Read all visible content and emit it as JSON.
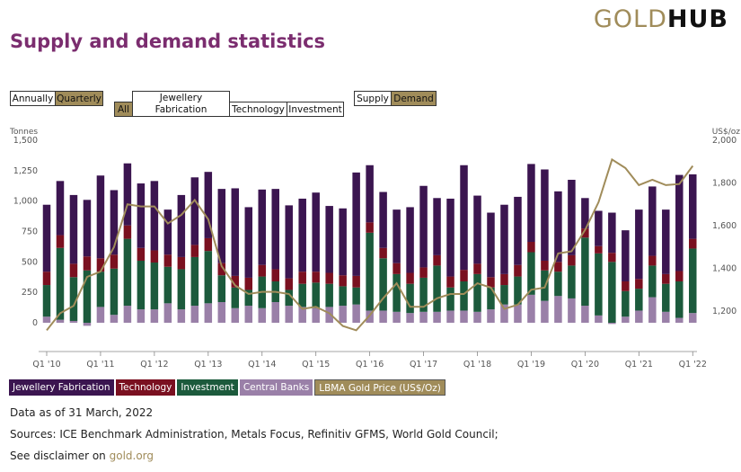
{
  "logo": {
    "part1": "GOLD",
    "part2": "HUB"
  },
  "title": "Supply and demand statistics",
  "controls": {
    "annually": "Annually",
    "quarterly": "Quarterly",
    "all": "All",
    "jewellery": "Jewellery Fabrication",
    "technology": "Technology",
    "investment": "Investment",
    "supply": "Supply",
    "demand": "Demand"
  },
  "legend": {
    "jewellery": "Jewellery Fabrication",
    "technology": "Technology",
    "investment": "Investment",
    "central_banks": "Central Banks",
    "gold_price": "LBMA Gold Price (US$/Oz)"
  },
  "colors": {
    "jewellery": "#3b1550",
    "technology": "#7a1020",
    "investment": "#1c5a3c",
    "central_banks": "#9a80a8",
    "gold_price": "#a08c5a"
  },
  "footer": {
    "data_as_of": "Data as of 31 March, 2022",
    "sources": "Sources: ICE Benchmark Administration, Metals Focus, Refinitiv GFMS, World Gold Council;",
    "disclaimer_prefix": "See disclaimer on ",
    "disclaimer_link": "gold.org"
  },
  "chart_data": {
    "type": "bar",
    "stacked": true,
    "ylabel_left": "Tonnes",
    "ylabel_right": "US$/oz",
    "ylim_left": [
      -70,
      1500
    ],
    "ylim_right": [
      1050,
      2000
    ],
    "yticks_left": [
      "0",
      "250",
      "500",
      "750",
      "1,000",
      "1,250",
      "1,500"
    ],
    "yticks_right": [
      "1,200",
      "1,400",
      "1,600",
      "1,800",
      "2,000"
    ],
    "xtick_labels": [
      "Q1 '10",
      "Q1 '11",
      "Q1 '12",
      "Q1 '13",
      "Q1 '14",
      "Q1 '15",
      "Q1 '16",
      "Q1 '17",
      "Q1 '18",
      "Q1 '19",
      "Q1 '20",
      "Q1 '21",
      "Q1 '22"
    ],
    "xtick_index": [
      0,
      4,
      8,
      12,
      16,
      20,
      24,
      28,
      32,
      36,
      40,
      44,
      48
    ],
    "categories": [
      "Q1 '10",
      "Q2 '10",
      "Q3 '10",
      "Q4 '10",
      "Q1 '11",
      "Q2 '11",
      "Q3 '11",
      "Q4 '11",
      "Q1 '12",
      "Q2 '12",
      "Q3 '12",
      "Q4 '12",
      "Q1 '13",
      "Q2 '13",
      "Q3 '13",
      "Q4 '13",
      "Q1 '14",
      "Q2 '14",
      "Q3 '14",
      "Q4 '14",
      "Q1 '15",
      "Q2 '15",
      "Q3 '15",
      "Q4 '15",
      "Q1 '16",
      "Q2 '16",
      "Q3 '16",
      "Q4 '16",
      "Q1 '17",
      "Q2 '17",
      "Q3 '17",
      "Q4 '17",
      "Q1 '18",
      "Q2 '18",
      "Q3 '18",
      "Q4 '18",
      "Q1 '19",
      "Q2 '19",
      "Q3 '19",
      "Q4 '19",
      "Q1 '20",
      "Q2 '20",
      "Q3 '20",
      "Q4 '20",
      "Q1 '21",
      "Q2 '21",
      "Q3 '21",
      "Q4 '21",
      "Q1 '22"
    ],
    "series": [
      {
        "name": "Central Banks",
        "values": [
          50,
          25,
          15,
          -25,
          130,
          65,
          140,
          110,
          110,
          160,
          110,
          140,
          160,
          170,
          120,
          140,
          120,
          170,
          140,
          130,
          120,
          130,
          140,
          150,
          100,
          100,
          90,
          80,
          90,
          90,
          100,
          100,
          90,
          110,
          150,
          150,
          230,
          180,
          220,
          200,
          140,
          60,
          -10,
          50,
          100,
          210,
          90,
          40,
          80
        ]
      },
      {
        "name": "Investment",
        "values": [
          260,
          590,
          360,
          430,
          290,
          380,
          550,
          400,
          385,
          300,
          330,
          400,
          430,
          220,
          170,
          130,
          260,
          170,
          130,
          190,
          210,
          190,
          160,
          140,
          640,
          430,
          310,
          240,
          280,
          380,
          190,
          240,
          310,
          180,
          160,
          230,
          350,
          250,
          200,
          270,
          560,
          510,
          500,
          210,
          180,
          260,
          230,
          300,
          530
        ]
      },
      {
        "name": "Technology",
        "values": [
          110,
          105,
          110,
          115,
          110,
          115,
          110,
          105,
          100,
          100,
          100,
          100,
          105,
          100,
          95,
          100,
          95,
          100,
          95,
          100,
          90,
          90,
          90,
          95,
          85,
          85,
          90,
          90,
          85,
          85,
          90,
          95,
          85,
          85,
          90,
          95,
          85,
          80,
          80,
          85,
          75,
          60,
          75,
          80,
          80,
          80,
          80,
          85,
          80
        ]
      },
      {
        "name": "Jewellery Fabrication",
        "values": [
          550,
          445,
          565,
          465,
          680,
          530,
          510,
          530,
          570,
          370,
          510,
          555,
          545,
          610,
          720,
          580,
          620,
          660,
          600,
          600,
          650,
          550,
          550,
          850,
          470,
          460,
          440,
          540,
          670,
          470,
          640,
          860,
          560,
          530,
          570,
          560,
          640,
          750,
          580,
          620,
          250,
          290,
          330,
          420,
          570,
          570,
          530,
          790,
          530
        ]
      }
    ],
    "price": {
      "name": "LBMA Gold Price (US$/Oz)",
      "values": [
        1110,
        1190,
        1225,
        1360,
        1385,
        1500,
        1700,
        1690,
        1690,
        1610,
        1650,
        1720,
        1630,
        1410,
        1320,
        1280,
        1290,
        1290,
        1280,
        1210,
        1220,
        1190,
        1130,
        1110,
        1180,
        1260,
        1330,
        1220,
        1220,
        1260,
        1280,
        1280,
        1330,
        1310,
        1210,
        1230,
        1300,
        1310,
        1470,
        1480,
        1580,
        1710,
        1910,
        1870,
        1790,
        1815,
        1790,
        1795,
        1880
      ]
    }
  }
}
